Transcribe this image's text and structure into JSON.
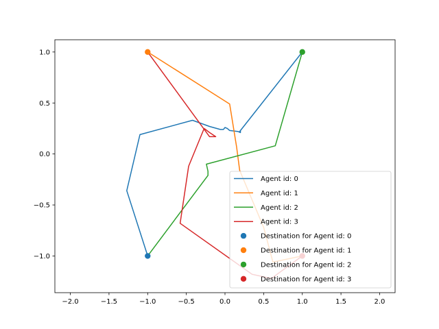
{
  "chart_data": {
    "type": "line",
    "title": "",
    "xlabel": "",
    "ylabel": "",
    "xlim": [
      -2.2,
      2.2
    ],
    "ylim": [
      -1.36,
      1.12
    ],
    "xticks": [
      -2.0,
      -1.5,
      -1.0,
      -0.5,
      0.0,
      0.5,
      1.0,
      1.5,
      2.0
    ],
    "xtick_labels": [
      "−2.0",
      "−1.5",
      "−1.0",
      "−0.5",
      "0.0",
      "0.5",
      "1.0",
      "1.5",
      "2.0"
    ],
    "yticks": [
      -1.0,
      -0.5,
      0.0,
      0.5,
      1.0
    ],
    "ytick_labels": [
      "−1.0",
      "−0.5",
      "0.0",
      "0.5",
      "1.0"
    ],
    "grid": false,
    "legend_position": "lower-right",
    "series": [
      {
        "name": "Agent id: 0",
        "color": "#1f77b4",
        "points": [
          [
            -1.0,
            -1.0
          ],
          [
            -1.27,
            -0.36
          ],
          [
            -1.1,
            0.19
          ],
          [
            -0.42,
            0.33
          ],
          [
            -0.2,
            0.27
          ],
          [
            -0.06,
            0.24
          ],
          [
            -0.02,
            0.24
          ],
          [
            0.0,
            0.26
          ],
          [
            0.03,
            0.25
          ],
          [
            0.06,
            0.23
          ],
          [
            0.17,
            0.22
          ],
          [
            0.2,
            0.21
          ],
          [
            0.2,
            0.23
          ],
          [
            0.19,
            0.22
          ],
          [
            1.0,
            1.0
          ]
        ]
      },
      {
        "name": "Agent id: 1",
        "color": "#ff7f0e",
        "points": [
          [
            -1.0,
            1.0
          ],
          [
            0.06,
            0.49
          ],
          [
            0.15,
            0.07
          ],
          [
            0.19,
            -0.16
          ],
          [
            0.5,
            -0.72
          ],
          [
            0.62,
            -1.06
          ],
          [
            1.0,
            -1.0
          ]
        ]
      },
      {
        "name": "Agent id: 2",
        "color": "#2ca02c",
        "points": [
          [
            1.0,
            1.0
          ],
          [
            0.65,
            0.08
          ],
          [
            -0.24,
            -0.1
          ],
          [
            -0.22,
            -0.17
          ],
          [
            -0.22,
            -0.21
          ],
          [
            -1.0,
            -1.0
          ]
        ]
      },
      {
        "name": "Agent id: 3",
        "color": "#d62728",
        "points": [
          [
            -1.0,
            1.0
          ],
          [
            -0.2,
            0.17
          ],
          [
            -0.12,
            0.17
          ],
          [
            -0.2,
            0.21
          ],
          [
            -0.27,
            0.25
          ],
          [
            -0.47,
            -0.12
          ],
          [
            -0.58,
            -0.68
          ],
          [
            0.35,
            -1.18
          ],
          [
            0.6,
            -1.22
          ],
          [
            1.0,
            -1.0
          ]
        ]
      }
    ],
    "destinations": [
      {
        "name": "Destination for Agent id: 0",
        "color": "#1f77b4",
        "x": -1.0,
        "y": -1.0
      },
      {
        "name": "Destination for Agent id: 1",
        "color": "#ff7f0e",
        "x": -1.0,
        "y": 1.0
      },
      {
        "name": "Destination for Agent id: 2",
        "color": "#2ca02c",
        "x": 1.0,
        "y": 1.0
      },
      {
        "name": "Destination for Agent id: 3",
        "color": "#d62728",
        "x": 1.0,
        "y": -1.0
      }
    ]
  }
}
